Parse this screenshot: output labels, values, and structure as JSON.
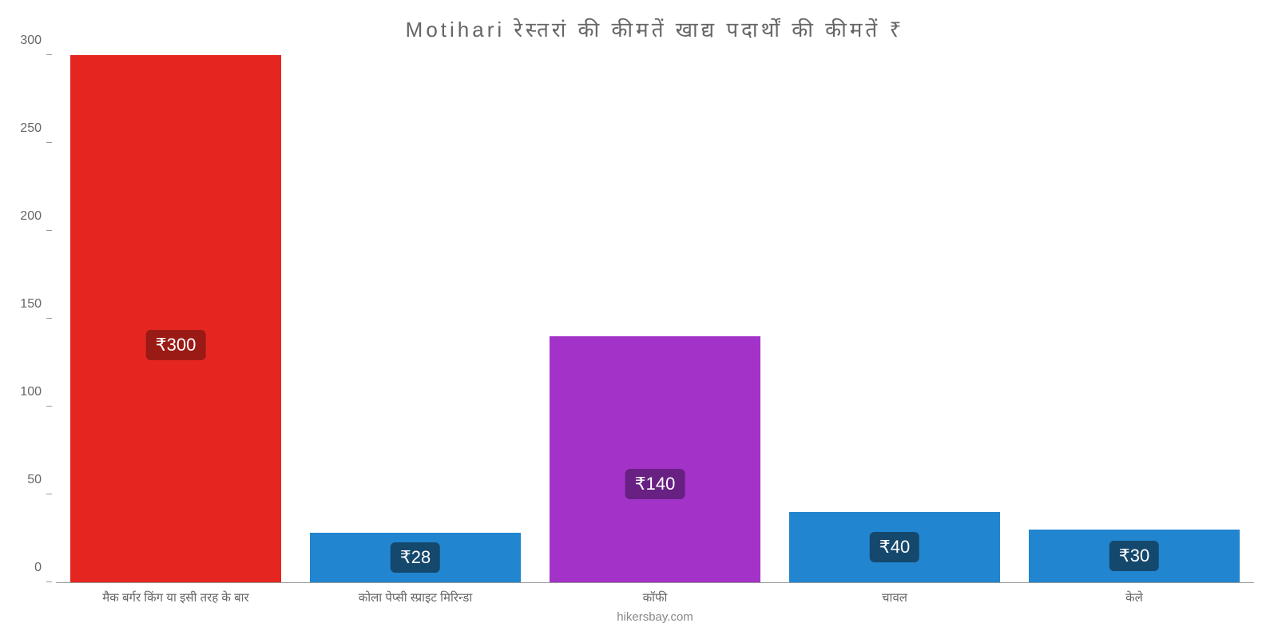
{
  "chart": {
    "type": "bar",
    "title": "Motihari रेस्तरां की कीमतें खाद्य पदार्थों की कीमतें ₹",
    "title_fontsize": 26,
    "title_color": "#666666",
    "background_color": "#ffffff",
    "axis_color": "#999999",
    "tick_label_color": "#666666",
    "tick_label_fontsize": 16,
    "x_label_fontsize": 15,
    "ylim": [
      0,
      300
    ],
    "ytick_step": 50,
    "yticks": [
      0,
      50,
      100,
      150,
      200,
      250,
      300
    ],
    "bar_width_ratio": 0.88,
    "categories": [
      "मैक बर्गर किंग या इसी तरह के बार",
      "कोला पेप्सी स्प्राइट मिरिन्डा",
      "कॉफी",
      "चावल",
      "केले"
    ],
    "values": [
      300,
      28,
      140,
      40,
      30
    ],
    "value_labels": [
      "₹300",
      "₹28",
      "₹140",
      "₹40",
      "₹30"
    ],
    "bar_colors": [
      "#e52620",
      "#2185d0",
      "#a333c8",
      "#2185d0",
      "#2185d0"
    ],
    "value_label_bg_colors": [
      "#9a1a15",
      "#15486d",
      "#682083",
      "#15486d",
      "#15486d"
    ],
    "value_label_text_color": "#ffffff",
    "value_label_fontsize": 22,
    "value_label_vertical_ratio": [
      0.45,
      0.5,
      0.4,
      0.5,
      0.5
    ],
    "source_text": "hikersbay.com",
    "source_color": "#888888",
    "source_fontsize": 15
  }
}
